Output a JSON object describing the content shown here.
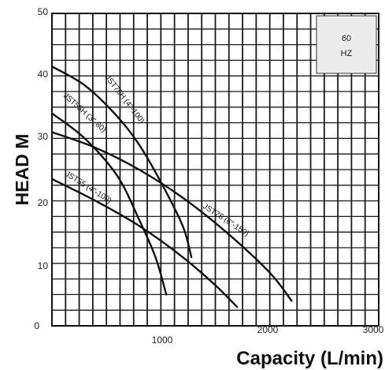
{
  "chart_data": {
    "type": "line",
    "xlabel": "Capacity (L/min)",
    "ylabel": "HEAD M",
    "xlim": [
      0,
      3000
    ],
    "ylim": [
      0,
      50
    ],
    "x_ticks": [
      "1000",
      "2000",
      "3000"
    ],
    "y_ticks": [
      "0",
      "10",
      "20",
      "30",
      "40",
      "50"
    ],
    "grid": true,
    "frequency_label": [
      "60",
      "HZ"
    ],
    "series": [
      {
        "name": "JST75H (4\"-100)",
        "x": [
          0,
          300,
          600,
          800,
          1000,
          1200,
          1280
        ],
        "y": [
          41.5,
          38.5,
          33.5,
          29,
          23,
          16,
          11
        ]
      },
      {
        "name": "JST55H (3\"-80)",
        "x": [
          0,
          300,
          600,
          800,
          950,
          1050
        ],
        "y": [
          34,
          30,
          24,
          17,
          11,
          5
        ]
      },
      {
        "name": "JST75 (6\"-150)",
        "x": [
          0,
          400,
          800,
          1200,
          1600,
          2000,
          2200
        ],
        "y": [
          31,
          28.5,
          25,
          20.5,
          15,
          8.5,
          4
        ]
      },
      {
        "name": "JST55 (4\"-100)",
        "x": [
          0,
          400,
          800,
          1200,
          1500,
          1700
        ],
        "y": [
          23.5,
          20,
          16,
          11,
          6.5,
          3
        ]
      }
    ]
  }
}
